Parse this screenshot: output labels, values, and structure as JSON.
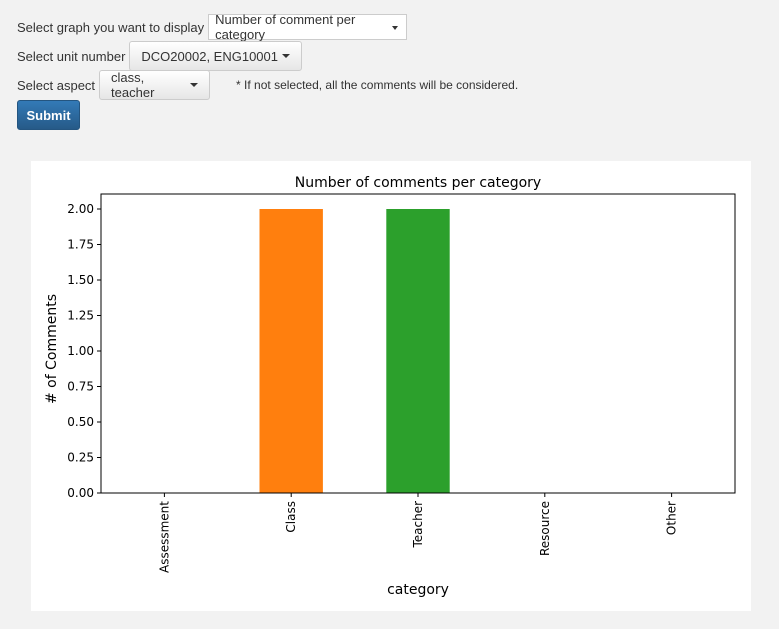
{
  "form": {
    "graph": {
      "label": "Select graph you want to display",
      "value": "Number of comment per category"
    },
    "unit": {
      "label": "Select unit number",
      "value": "DCO20002, ENG10001"
    },
    "aspect": {
      "label": "Select aspect",
      "value": "class, teacher",
      "note": "* If not selected, all the comments will be considered."
    },
    "submit_label": "Submit"
  },
  "colors": {
    "primary": "#337ab7",
    "class_bar": "#ff7f0e",
    "teacher_bar": "#2ca02c",
    "assessment_bar": "#1f77b4",
    "resource_bar": "#d62728",
    "other_bar": "#9467bd"
  },
  "chart_data": {
    "type": "bar",
    "title": "Number of comments per category",
    "xlabel": "category",
    "ylabel": "# of Comments",
    "categories": [
      "Assessment",
      "Class",
      "Teacher",
      "Resource",
      "Other"
    ],
    "values": [
      0,
      2,
      2,
      0,
      0
    ],
    "bar_colors": [
      "#1f77b4",
      "#ff7f0e",
      "#2ca02c",
      "#d62728",
      "#9467bd"
    ],
    "ylim": [
      0,
      2
    ],
    "yticks": [
      "0.00",
      "0.25",
      "0.50",
      "0.75",
      "1.00",
      "1.25",
      "1.50",
      "1.75",
      "2.00"
    ],
    "grid": false,
    "legend": "none"
  }
}
